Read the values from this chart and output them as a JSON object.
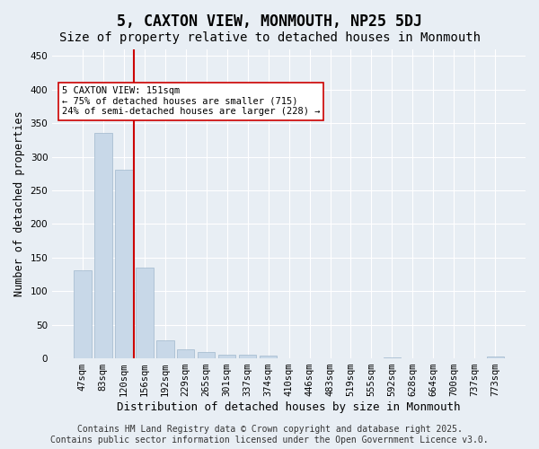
{
  "title": "5, CAXTON VIEW, MONMOUTH, NP25 5DJ",
  "subtitle": "Size of property relative to detached houses in Monmouth",
  "xlabel": "Distribution of detached houses by size in Monmouth",
  "ylabel": "Number of detached properties",
  "categories": [
    "47sqm",
    "83sqm",
    "120sqm",
    "156sqm",
    "192sqm",
    "229sqm",
    "265sqm",
    "301sqm",
    "337sqm",
    "374sqm",
    "410sqm",
    "446sqm",
    "483sqm",
    "519sqm",
    "555sqm",
    "592sqm",
    "628sqm",
    "664sqm",
    "700sqm",
    "737sqm",
    "773sqm"
  ],
  "values": [
    131,
    336,
    281,
    135,
    27,
    14,
    10,
    6,
    5,
    4,
    0,
    0,
    0,
    0,
    0,
    2,
    0,
    0,
    0,
    0,
    3
  ],
  "bar_color": "#c8d8e8",
  "bar_edge_color": "#a0b8cc",
  "vline_x": 2.5,
  "vline_color": "#cc0000",
  "annotation_text": "5 CAXTON VIEW: 151sqm\n← 75% of detached houses are smaller (715)\n24% of semi-detached houses are larger (228) →",
  "annotation_box_color": "#ffffff",
  "annotation_box_edge": "#cc0000",
  "annotation_fontsize": 7.5,
  "ylim": [
    0,
    460
  ],
  "yticks": [
    0,
    50,
    100,
    150,
    200,
    250,
    300,
    350,
    400,
    450
  ],
  "background_color": "#e8eef4",
  "grid_color": "#ffffff",
  "title_fontsize": 12,
  "subtitle_fontsize": 10,
  "xlabel_fontsize": 9,
  "ylabel_fontsize": 8.5,
  "tick_fontsize": 7.5,
  "footer_text": "Contains HM Land Registry data © Crown copyright and database right 2025.\nContains public sector information licensed under the Open Government Licence v3.0.",
  "footer_fontsize": 7
}
